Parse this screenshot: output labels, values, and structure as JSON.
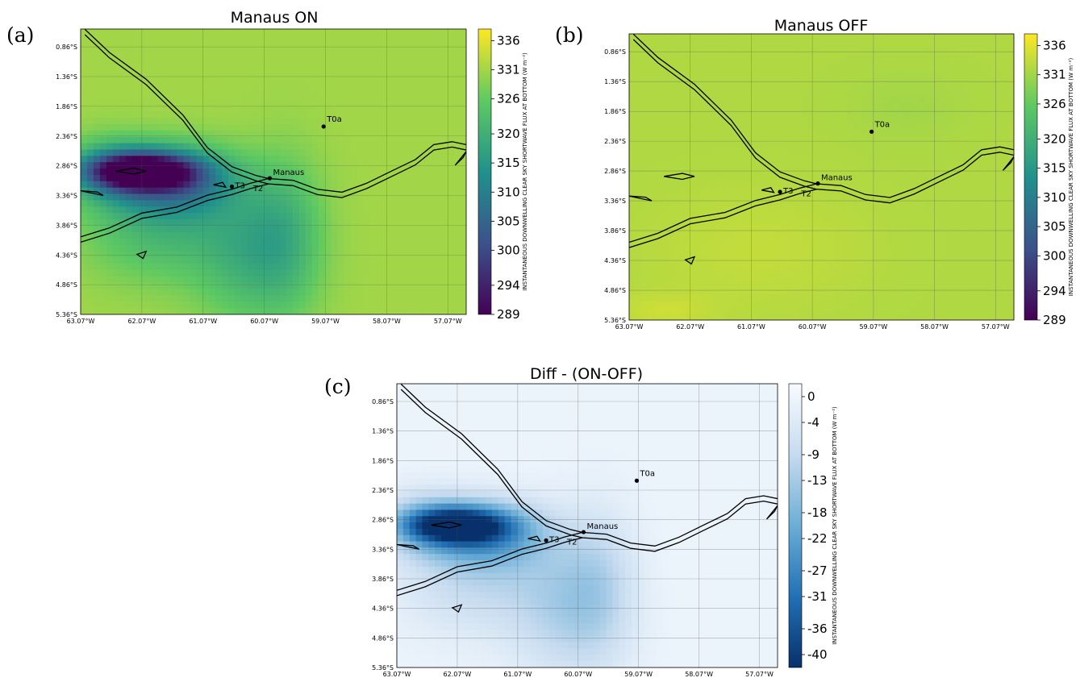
{
  "chart_data": [
    {
      "panel_label": "(a)",
      "type": "heatmap",
      "title": "Manaus ON",
      "lat_ticks": [
        "0.86°S",
        "1.36°S",
        "1.86°S",
        "2.36°S",
        "2.86°S",
        "3.36°S",
        "3.86°S",
        "4.36°S",
        "4.86°S",
        "5.36°S"
      ],
      "lon_ticks": [
        "63.07°W",
        "62.07°W",
        "61.07°W",
        "60.07°W",
        "59.07°W",
        "58.07°W",
        "57.07°W"
      ],
      "lon_range": [
        -63.07,
        -56.77
      ],
      "lat_range": [
        -5.36,
        -0.56
      ],
      "grid": true,
      "colorbar": {
        "label": "INSTANTANEOUS DOWNWELLING CLEAR SKY SHORTWAVE FLUX AT BOTTOM (W m⁻²)",
        "ticks": [
          336,
          331,
          326,
          320,
          315,
          310,
          305,
          300,
          294,
          289
        ],
        "range": [
          289,
          338
        ],
        "colormap": "viridis"
      },
      "field": {
        "background": 331,
        "anomalies": [
          {
            "lon": -62.1,
            "lat": -2.95,
            "rlon": 0.85,
            "rlat": 0.3,
            "delta": -38
          },
          {
            "lon": -61.55,
            "lat": -3.1,
            "rlon": 0.95,
            "rlat": 0.55,
            "delta": -22
          },
          {
            "lon": -62.6,
            "lat": -2.95,
            "rlon": 0.75,
            "rlat": 0.55,
            "delta": -12
          },
          {
            "lon": -61.8,
            "lat": -3.9,
            "rlon": 1.2,
            "rlat": 0.9,
            "delta": -9
          },
          {
            "lon": -60.3,
            "lat": -4.3,
            "rlon": 0.9,
            "rlat": 1.2,
            "delta": -10
          },
          {
            "lon": -59.7,
            "lat": -4.0,
            "rlon": 0.6,
            "rlat": 1.3,
            "delta": -7
          }
        ]
      },
      "sites": [
        {
          "name": "T0a",
          "lon": -59.1,
          "lat": -2.2
        },
        {
          "name": "Manaus",
          "lon": -59.98,
          "lat": -3.07
        },
        {
          "name": "T2",
          "lon": -60.12,
          "lat": -3.12
        },
        {
          "name": "T3",
          "lon": -60.6,
          "lat": -3.21
        }
      ]
    },
    {
      "panel_label": "(b)",
      "type": "heatmap",
      "title": "Manaus OFF",
      "lat_ticks": [
        "0.86°S",
        "1.36°S",
        "1.86°S",
        "2.36°S",
        "2.86°S",
        "3.36°S",
        "3.86°S",
        "4.36°S",
        "4.86°S",
        "5.36°S"
      ],
      "lon_ticks": [
        "63.07°W",
        "62.07°W",
        "61.07°W",
        "60.07°W",
        "59.07°W",
        "58.07°W",
        "57.07°W"
      ],
      "lon_range": [
        -63.07,
        -56.77
      ],
      "lat_range": [
        -5.36,
        -0.56
      ],
      "grid": true,
      "colorbar": {
        "label": "INSTANTANEOUS DOWNWELLING CLEAR SKY SHORTWAVE FLUX AT BOTTOM (W m⁻²)",
        "ticks": [
          336,
          331,
          326,
          320,
          315,
          310,
          305,
          300,
          294,
          289
        ],
        "range": [
          289,
          338
        ],
        "colormap": "viridis"
      },
      "field": {
        "background": 332,
        "anomalies": [
          {
            "lon": -61.0,
            "lat": -4.2,
            "rlon": 1.8,
            "rlat": 1.0,
            "delta": 1.5
          },
          {
            "lon": -62.5,
            "lat": -5.2,
            "rlon": 0.8,
            "rlat": 0.3,
            "delta": 2
          },
          {
            "lon": -58.5,
            "lat": -1.8,
            "rlon": 1.0,
            "rlat": 0.6,
            "delta": -1
          }
        ]
      },
      "sites": [
        {
          "name": "T0a",
          "lon": -59.1,
          "lat": -2.2
        },
        {
          "name": "Manaus",
          "lon": -59.98,
          "lat": -3.07
        },
        {
          "name": "T2",
          "lon": -60.12,
          "lat": -3.12
        },
        {
          "name": "T3",
          "lon": -60.6,
          "lat": -3.21
        }
      ]
    },
    {
      "panel_label": "(c)",
      "type": "heatmap",
      "title": "Diff - (ON-OFF)",
      "lat_ticks": [
        "0.86°S",
        "1.36°S",
        "1.86°S",
        "2.36°S",
        "2.86°S",
        "3.36°S",
        "3.86°S",
        "4.36°S",
        "4.86°S",
        "5.36°S"
      ],
      "lon_ticks": [
        "63.07°W",
        "62.07°W",
        "61.07°W",
        "60.07°W",
        "59.07°W",
        "58.07°W",
        "57.07°W"
      ],
      "lon_range": [
        -63.07,
        -56.77
      ],
      "lat_range": [
        -5.36,
        -0.56
      ],
      "grid": true,
      "colorbar": {
        "label": "INSTANTANEOUS DOWNWELLING CLEAR SKY SHORTWAVE FLUX AT BOTTOM (W m⁻²)",
        "ticks": [
          0,
          -4,
          -9,
          -13,
          -18,
          -22,
          -27,
          -31,
          -36,
          -40
        ],
        "range": [
          -42,
          2
        ],
        "colormap": "blues"
      },
      "field": {
        "background": -0.5,
        "anomalies": [
          {
            "lon": -62.1,
            "lat": -2.95,
            "rlon": 0.85,
            "rlat": 0.3,
            "delta": -34
          },
          {
            "lon": -61.55,
            "lat": -3.1,
            "rlon": 0.95,
            "rlat": 0.55,
            "delta": -20
          },
          {
            "lon": -62.6,
            "lat": -2.95,
            "rlon": 0.75,
            "rlat": 0.55,
            "delta": -12
          },
          {
            "lon": -61.8,
            "lat": -3.9,
            "rlon": 1.2,
            "rlat": 0.9,
            "delta": -8
          },
          {
            "lon": -60.3,
            "lat": -4.3,
            "rlon": 0.9,
            "rlat": 1.2,
            "delta": -10
          },
          {
            "lon": -59.7,
            "lat": -4.0,
            "rlon": 0.6,
            "rlat": 1.3,
            "delta": -7
          }
        ]
      },
      "sites": [
        {
          "name": "T0a",
          "lon": -59.1,
          "lat": -2.2
        },
        {
          "name": "Manaus",
          "lon": -59.98,
          "lat": -3.07
        },
        {
          "name": "T2",
          "lon": -60.12,
          "lat": -3.12
        },
        {
          "name": "T3",
          "lon": -60.6,
          "lat": -3.21
        }
      ]
    }
  ],
  "map": {
    "rivers": [
      {
        "name": "Rio Negro",
        "path": [
          [
            -63.0,
            -0.61
          ],
          [
            -62.6,
            -1.0
          ],
          [
            -62.0,
            -1.45
          ],
          [
            -61.4,
            -2.05
          ],
          [
            -61.0,
            -2.6
          ],
          [
            -60.6,
            -2.92
          ],
          [
            -60.2,
            -3.07
          ],
          [
            -60.0,
            -3.12
          ]
        ]
      },
      {
        "name": "Solimoes",
        "path": [
          [
            -63.07,
            -4.1
          ],
          [
            -62.6,
            -3.95
          ],
          [
            -62.07,
            -3.7
          ],
          [
            -61.5,
            -3.6
          ],
          [
            -61.0,
            -3.4
          ],
          [
            -60.6,
            -3.3
          ],
          [
            -60.3,
            -3.2
          ],
          [
            -60.0,
            -3.12
          ]
        ]
      },
      {
        "name": "Amazonas",
        "path": [
          [
            -60.0,
            -3.12
          ],
          [
            -59.6,
            -3.15
          ],
          [
            -59.2,
            -3.3
          ],
          [
            -58.8,
            -3.35
          ],
          [
            -58.4,
            -3.2
          ],
          [
            -58.0,
            -3.0
          ],
          [
            -57.6,
            -2.8
          ],
          [
            -57.3,
            -2.55
          ],
          [
            -57.0,
            -2.5
          ],
          [
            -56.77,
            -2.55
          ]
        ]
      }
    ],
    "lakes": [
      {
        "name": "lake-1",
        "path": [
          [
            -62.5,
            -2.95
          ],
          [
            -62.2,
            -2.9
          ],
          [
            -62.0,
            -2.95
          ],
          [
            -62.2,
            -3.0
          ]
        ]
      },
      {
        "name": "lake-2",
        "path": [
          [
            -63.07,
            -3.28
          ],
          [
            -62.8,
            -3.3
          ],
          [
            -62.7,
            -3.36
          ]
        ]
      },
      {
        "name": "lake-3",
        "path": [
          [
            -62.15,
            -4.35
          ],
          [
            -62.0,
            -4.3
          ],
          [
            -62.05,
            -4.42
          ]
        ]
      },
      {
        "name": "lake-4",
        "path": [
          [
            -60.9,
            -3.18
          ],
          [
            -60.75,
            -3.14
          ],
          [
            -60.7,
            -3.22
          ]
        ]
      },
      {
        "name": "lake-5",
        "path": [
          [
            -56.95,
            -2.85
          ],
          [
            -56.82,
            -2.72
          ],
          [
            -56.77,
            -2.62
          ]
        ]
      }
    ]
  }
}
